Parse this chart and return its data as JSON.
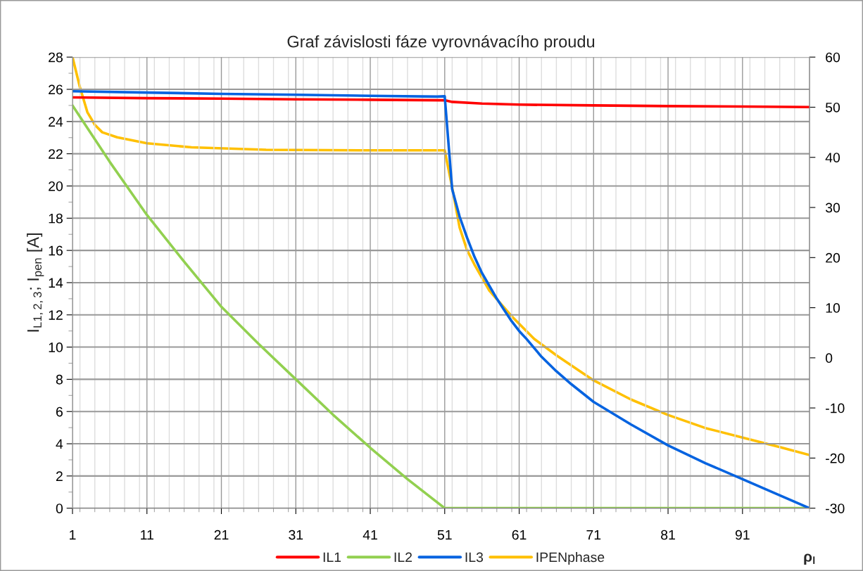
{
  "chart_data": {
    "type": "line",
    "title": "Graf závislosti fáze vyrovnávacího proudu",
    "xlabel": "ρ$_{l}$",
    "ylabel": "I$_{L1,2,3}$; I$_{pen}$ [A]",
    "xlim": [
      1,
      100
    ],
    "xticks": [
      1,
      11,
      21,
      31,
      41,
      51,
      61,
      71,
      81,
      91
    ],
    "ylim": [
      0,
      28
    ],
    "yticks": [
      0,
      2,
      4,
      6,
      8,
      10,
      12,
      14,
      16,
      18,
      20,
      22,
      24,
      26,
      28
    ],
    "y2lim": [
      -30,
      60
    ],
    "y2ticks": [
      -30,
      -20,
      -10,
      0,
      10,
      20,
      30,
      40,
      50,
      60
    ],
    "grid": true,
    "legend": "bottom",
    "marker": "none",
    "line_style": "solid",
    "series": [
      {
        "name": "IL1",
        "color": "#ff0000",
        "x": [
          1,
          11,
          21,
          31,
          41,
          51,
          52,
          56,
          61,
          71,
          81,
          91,
          100
        ],
        "values": [
          25.5,
          25.45,
          25.42,
          25.38,
          25.35,
          25.32,
          25.22,
          25.12,
          25.05,
          25.0,
          24.96,
          24.93,
          24.9
        ]
      },
      {
        "name": "IL2",
        "color": "#92d050",
        "x": [
          1,
          6,
          11,
          16,
          21,
          26,
          31,
          36,
          41,
          46,
          51,
          100
        ],
        "values": [
          25.0,
          21.5,
          18.2,
          15.3,
          12.5,
          10.2,
          8.0,
          5.8,
          3.75,
          1.8,
          0,
          0
        ]
      },
      {
        "name": "IL3",
        "color": "#0563e0",
        "x": [
          1,
          11,
          21,
          31,
          41,
          50,
          51,
          52,
          53,
          54,
          55,
          56,
          57,
          58,
          59,
          60,
          61,
          62,
          64,
          66,
          68,
          71,
          76,
          81,
          86,
          91,
          96,
          100
        ],
        "values": [
          25.88,
          25.8,
          25.72,
          25.66,
          25.6,
          25.55,
          25.57,
          19.8,
          18.1,
          16.8,
          15.6,
          14.6,
          13.8,
          13.0,
          12.3,
          11.6,
          11.0,
          10.5,
          9.4,
          8.5,
          7.7,
          6.6,
          5.2,
          3.9,
          2.8,
          1.8,
          0.8,
          0.0
        ]
      },
      {
        "name": "IPENphase",
        "color": "#ffc000",
        "axis": "y2",
        "x": [
          1,
          2,
          3,
          4,
          5,
          7,
          11,
          17,
          27,
          40,
          51,
          52,
          53,
          54,
          55,
          57,
          60,
          63,
          66,
          71,
          76,
          81,
          86,
          91,
          96,
          100
        ],
        "values": [
          60,
          54.0,
          49.0,
          46.5,
          45.0,
          44.0,
          42.8,
          42.0,
          41.5,
          41.4,
          41.4,
          34.0,
          26.0,
          21.5,
          18.6,
          13.4,
          8.3,
          3.8,
          0.5,
          -4.5,
          -8.3,
          -11.4,
          -14.0,
          -15.9,
          -17.8,
          -19.4
        ]
      }
    ]
  }
}
